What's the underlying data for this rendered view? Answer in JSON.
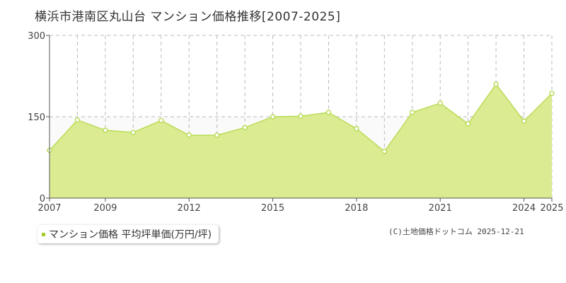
{
  "title": "横浜市港南区丸山台 マンション価格推移[2007-2025]",
  "credit": "(C)土地価格ドットコム 2025-12-21",
  "colors": {
    "area_fill": "#dbeb92",
    "line": "#b9dc57",
    "marker_fill": "#ffffff",
    "legend_swatch": "#a6cc2a",
    "grid": "#bbbbbb",
    "axis": "#555555"
  },
  "chart_data": {
    "type": "area",
    "title": "横浜市港南区丸山台 マンション価格推移[2007-2025]",
    "xlim": [
      2007,
      2025
    ],
    "ylim": [
      0,
      300
    ],
    "y_ticks": [
      0,
      150,
      300
    ],
    "x_ticks": [
      2007,
      2009,
      2012,
      2015,
      2018,
      2021,
      2024,
      2025
    ],
    "x_grid": [
      2008,
      2009,
      2010,
      2011,
      2012,
      2013,
      2014,
      2015,
      2016,
      2017,
      2018,
      2019,
      2020,
      2021,
      2022,
      2023,
      2024,
      2025
    ],
    "reference_line": 150,
    "legend": {
      "position": "bottom-left",
      "label": "マンション価格 平均坪単価(万円/坪)"
    },
    "series": [
      {
        "name": "マンション価格 平均坪単価(万円/坪)",
        "x": [
          2007,
          2008,
          2009,
          2010,
          2011,
          2012,
          2013,
          2014,
          2015,
          2016,
          2017,
          2018,
          2019,
          2020,
          2021,
          2022,
          2023,
          2024,
          2025
        ],
        "values": [
          88,
          144,
          125,
          121,
          143,
          116,
          116,
          130,
          150,
          151,
          158,
          128,
          86,
          158,
          175,
          137,
          210,
          142,
          193
        ]
      }
    ]
  }
}
